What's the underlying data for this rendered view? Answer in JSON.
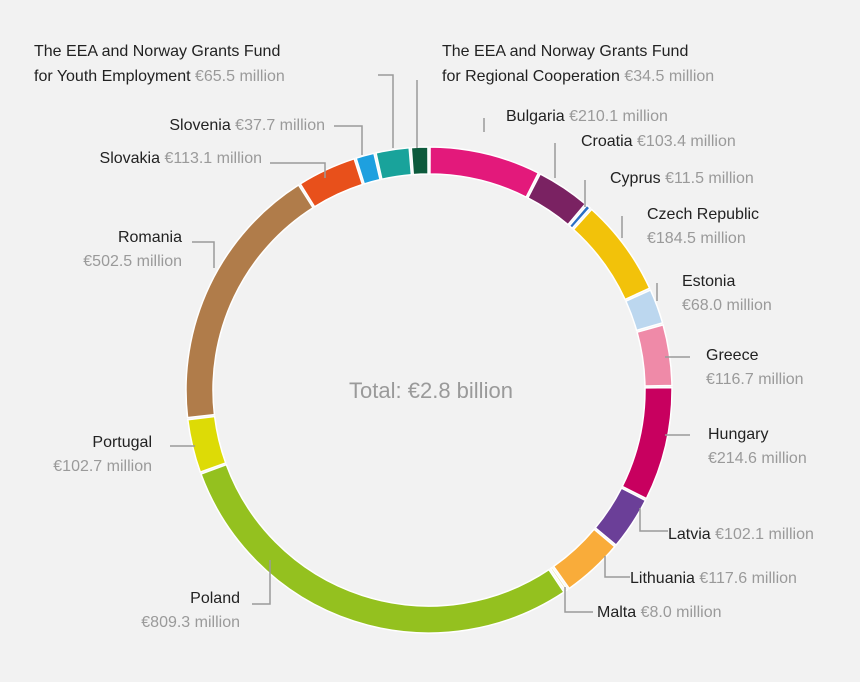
{
  "chart_data": {
    "type": "pie",
    "style": "donut",
    "center_label": "Total: €2.8 billion",
    "slices": [
      {
        "key": "bulgaria",
        "name": "Bulgaria",
        "value": 210.1,
        "value_label": "€210.1 million",
        "color": "#e3197b"
      },
      {
        "key": "croatia",
        "name": "Croatia",
        "value": 103.4,
        "value_label": "€103.4 million",
        "color": "#7a2262"
      },
      {
        "key": "cyprus",
        "name": "Cyprus",
        "value": 11.5,
        "value_label": "€11.5 million",
        "color": "#2a6fc4"
      },
      {
        "key": "czech-republic",
        "name": "Czech Republic",
        "value": 184.5,
        "value_label": "€184.5 million",
        "color": "#f2c20a"
      },
      {
        "key": "estonia",
        "name": "Estonia",
        "value": 68.0,
        "value_label": "€68.0 million",
        "color": "#bcd7ef"
      },
      {
        "key": "greece",
        "name": "Greece",
        "value": 116.7,
        "value_label": "€116.7 million",
        "color": "#ef8aa8"
      },
      {
        "key": "hungary",
        "name": "Hungary",
        "value": 214.6,
        "value_label": "€214.6 million",
        "color": "#c8005f"
      },
      {
        "key": "latvia",
        "name": "Latvia",
        "value": 102.1,
        "value_label": "€102.1 million",
        "color": "#6b3f98"
      },
      {
        "key": "lithuania",
        "name": "Lithuania",
        "value": 117.6,
        "value_label": "€117.6 million",
        "color": "#f9ac3a"
      },
      {
        "key": "malta",
        "name": "Malta",
        "value": 8.0,
        "value_label": "€8.0 million",
        "color": "#e8e4a8"
      },
      {
        "key": "poland",
        "name": "Poland",
        "value": 809.3,
        "value_label": "€809.3 million",
        "color": "#94c11f"
      },
      {
        "key": "portugal",
        "name": "Portugal",
        "value": 102.7,
        "value_label": "€102.7 million",
        "color": "#dddb06"
      },
      {
        "key": "romania",
        "name": "Romania",
        "value": 502.5,
        "value_label": "€502.5 million",
        "color": "#b07c4a"
      },
      {
        "key": "slovakia",
        "name": "Slovakia",
        "value": 113.1,
        "value_label": "€113.1 million",
        "color": "#e8501b"
      },
      {
        "key": "slovenia",
        "name": "Slovenia",
        "value": 37.7,
        "value_label": "€37.7 million",
        "color": "#1ea0df"
      },
      {
        "key": "youth-employment",
        "name": "The EEA and Norway Grants Fund for Youth Employment",
        "name_lines": [
          "The EEA and Norway Grants Fund",
          "for Youth Employment"
        ],
        "value": 65.5,
        "value_label": "€65.5 million",
        "color": "#19a39b"
      },
      {
        "key": "regional-cooperation",
        "name": "The EEA and Norway Grants Fund for Regional Cooperation",
        "name_lines": [
          "The EEA and Norway Grants Fund",
          "for Regional Cooperation"
        ],
        "value": 34.5,
        "value_label": "€34.5 million",
        "color": "#0d5a3c"
      }
    ]
  }
}
